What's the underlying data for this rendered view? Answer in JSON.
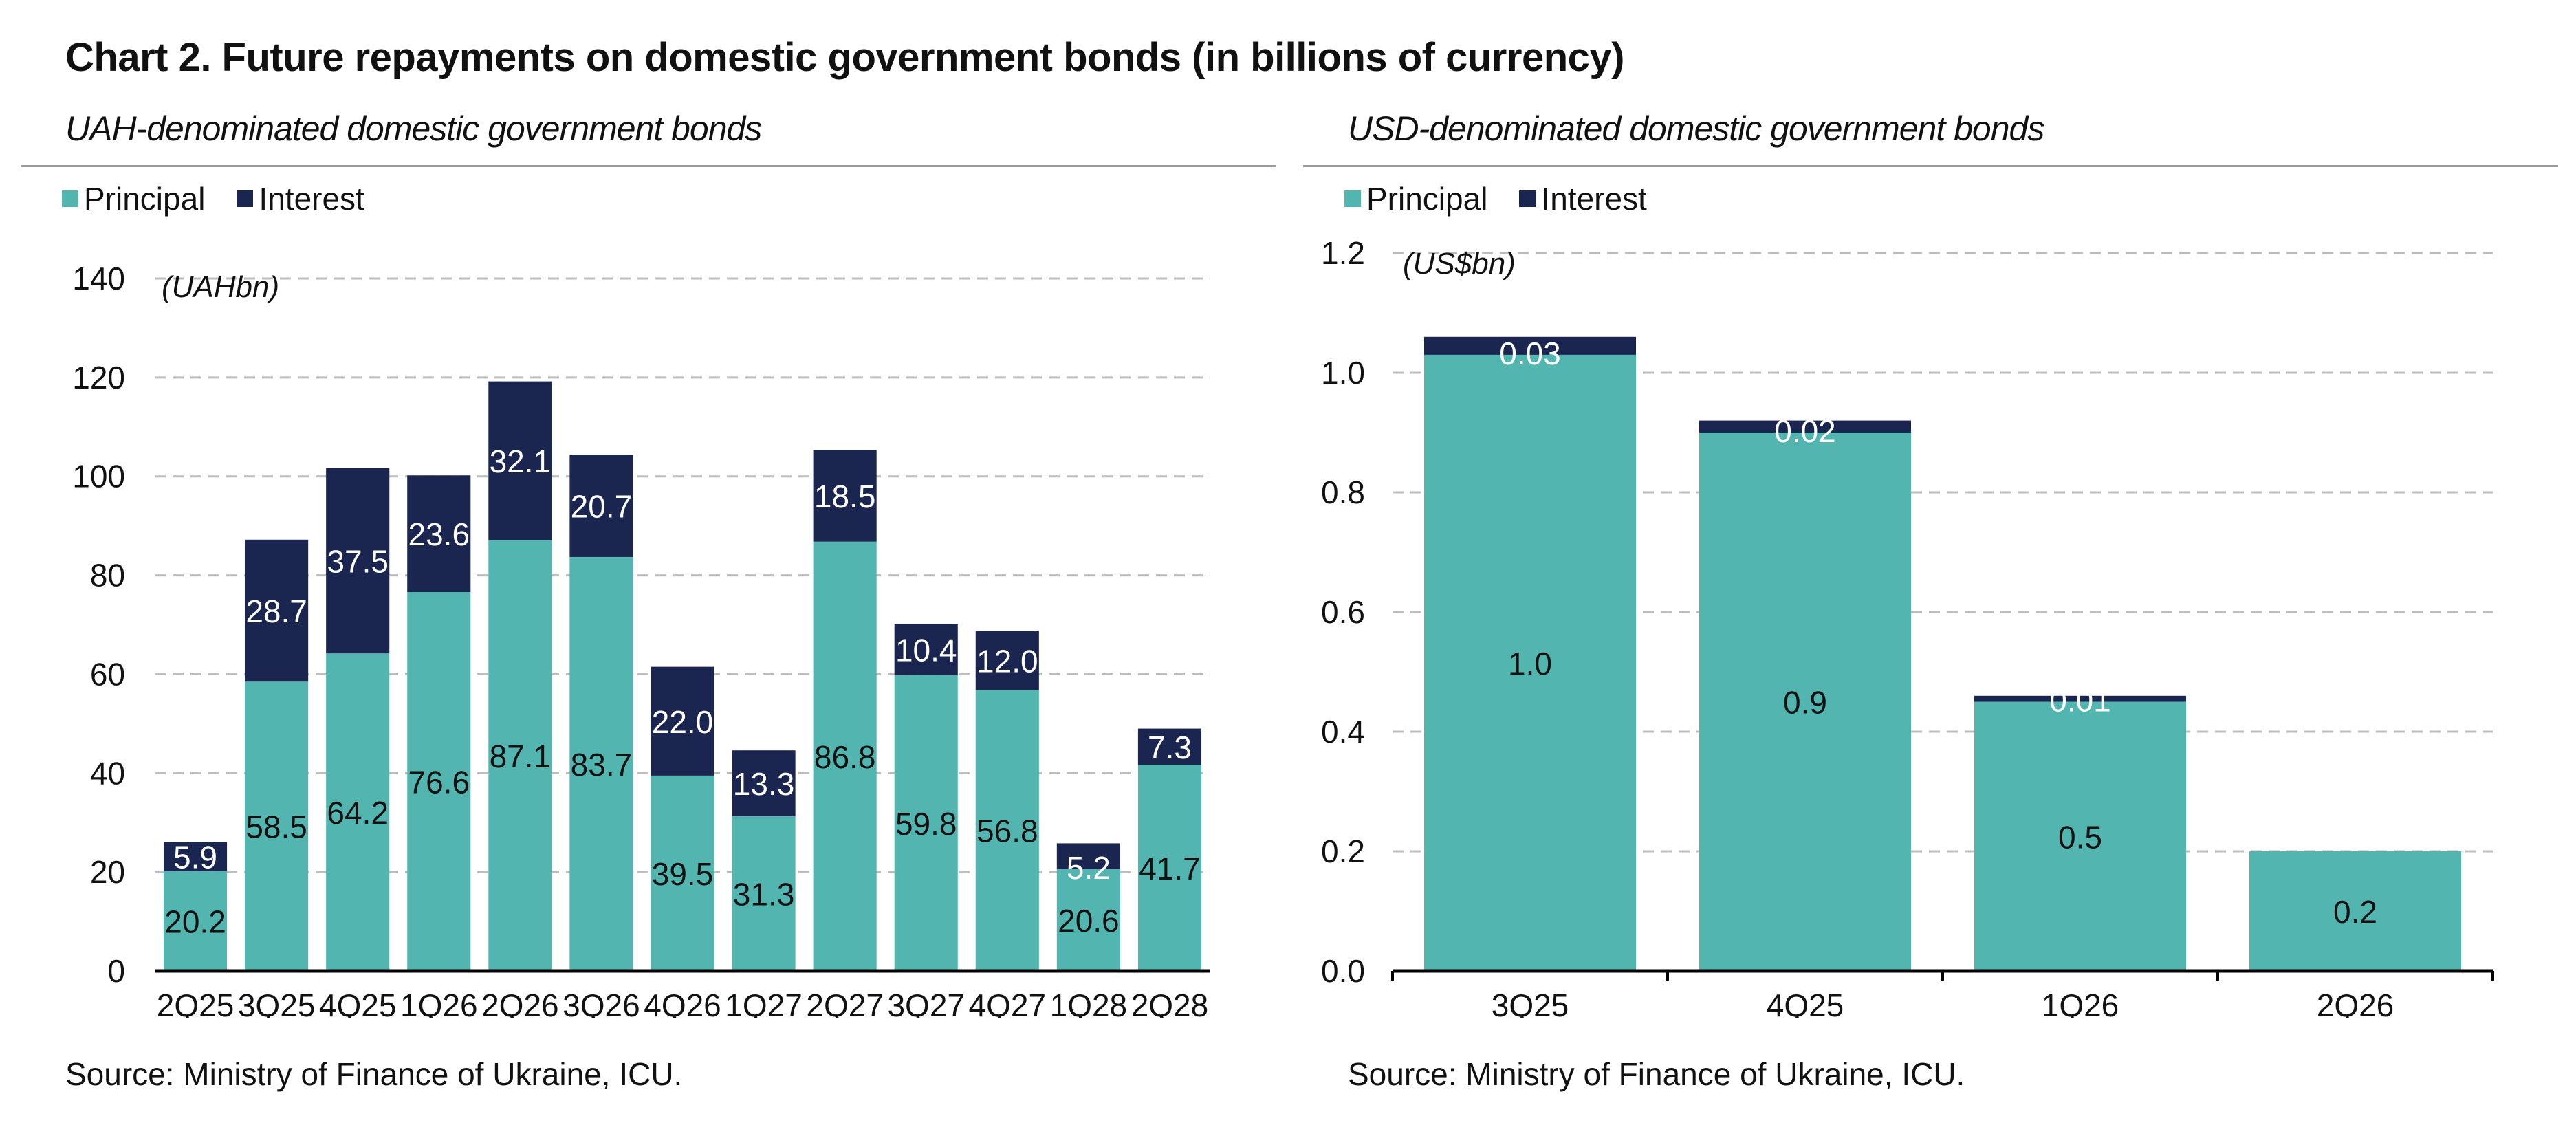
{
  "title": "Chart 2. Future repayments on domestic government bonds (in billions of currency)",
  "colors": {
    "principal": "#52b5b0",
    "interest": "#1a2550",
    "grid": "#bdbdbd"
  },
  "chart_data": [
    {
      "type": "bar",
      "stacked": true,
      "title": "UAH-denominated domestic government bonds",
      "ylabel": "(UAHbn)",
      "ylim": [
        0,
        140
      ],
      "yticks": [
        0,
        20,
        40,
        60,
        80,
        100,
        120,
        140
      ],
      "grid": true,
      "legend": "top-left",
      "categories": [
        "2Q25",
        "3Q25",
        "4Q25",
        "1Q26",
        "2Q26",
        "3Q26",
        "4Q26",
        "1Q27",
        "2Q27",
        "3Q27",
        "4Q27",
        "1Q28",
        "2Q28"
      ],
      "series": [
        {
          "name": "Principal",
          "values": [
            20.2,
            58.5,
            64.2,
            76.6,
            87.1,
            83.7,
            39.5,
            31.3,
            86.8,
            59.8,
            56.8,
            20.6,
            41.7
          ],
          "labels": [
            "20.2",
            "58.5",
            "64.2",
            "76.6",
            "87.1",
            "83.7",
            "39.5",
            "31.3",
            "86.8",
            "59.8",
            "56.8",
            "20.6",
            "41.7"
          ]
        },
        {
          "name": "Interest",
          "values": [
            5.9,
            28.7,
            37.5,
            23.6,
            32.1,
            20.7,
            22.0,
            13.3,
            18.5,
            10.4,
            12.0,
            5.2,
            7.3
          ],
          "labels": [
            "5.9",
            "28.7",
            "37.5",
            "23.6",
            "32.1",
            "20.7",
            "22.0",
            "13.3",
            "18.5",
            "10.4",
            "12.0",
            "5.2",
            "7.3"
          ]
        }
      ],
      "source": "Source: Ministry of Finance of Ukraine, ICU."
    },
    {
      "type": "bar",
      "stacked": true,
      "title": "USD-denominated domestic government bonds",
      "ylabel": "(US$bn)",
      "ylim": [
        0,
        1.2
      ],
      "yticks": [
        "0.0",
        "0.2",
        "0.4",
        "0.6",
        "0.8",
        "1.0",
        "1.2"
      ],
      "grid": true,
      "legend": "top-left",
      "categories": [
        "3Q25",
        "4Q25",
        "1Q26",
        "2Q26"
      ],
      "series": [
        {
          "name": "Principal",
          "values": [
            1.03,
            0.9,
            0.45,
            0.2
          ],
          "labels": [
            "1.0",
            "0.9",
            "0.5",
            "0.2"
          ]
        },
        {
          "name": "Interest",
          "values": [
            0.03,
            0.02,
            0.01,
            0
          ],
          "labels": [
            "0.03",
            "0.02",
            "0.01",
            ""
          ]
        }
      ],
      "source": "Source: Ministry of Finance of Ukraine, ICU."
    }
  ]
}
